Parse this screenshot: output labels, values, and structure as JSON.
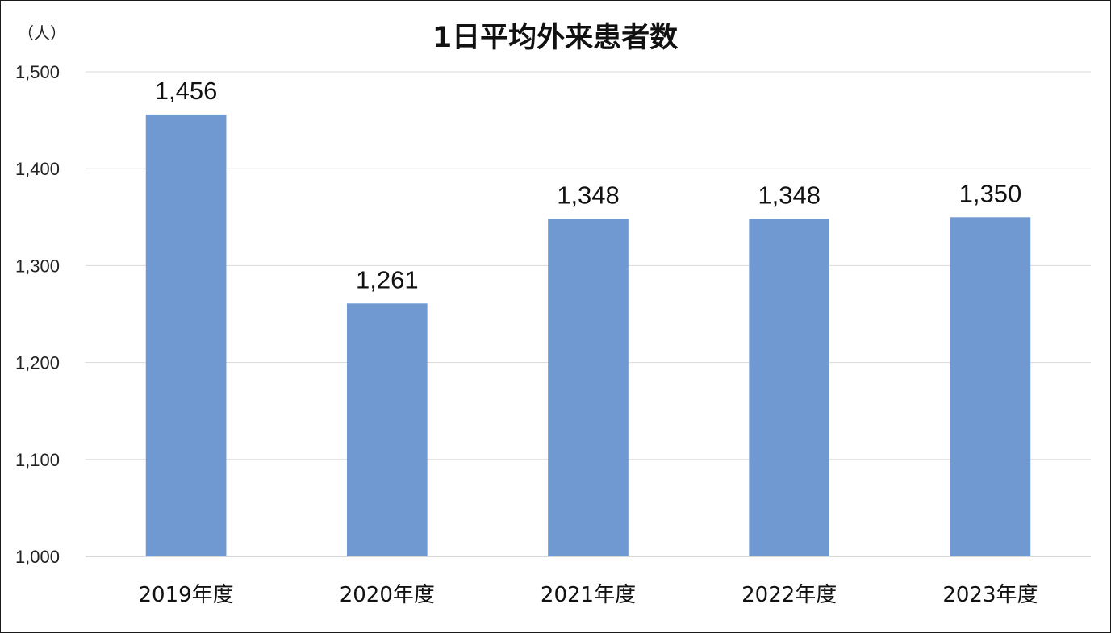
{
  "chart_data": {
    "type": "bar",
    "title": "1日平均外来患者数",
    "ylabel": "（人）",
    "xlabel": "",
    "categories": [
      "2019年度",
      "2020年度",
      "2021年度",
      "2022年度",
      "2023年度"
    ],
    "values": [
      1456,
      1261,
      1348,
      1348,
      1350
    ],
    "data_labels": [
      "1,456",
      "1,261",
      "1,348",
      "1,348",
      "1,350"
    ],
    "ylim": [
      1000,
      1500
    ],
    "yticks": [
      1000,
      1100,
      1200,
      1300,
      1400,
      1500
    ],
    "ytick_labels": [
      "1,000",
      "1,100",
      "1,200",
      "1,300",
      "1,400",
      "1,500"
    ],
    "grid": true,
    "legend": "none",
    "bar_color": "#7199d1"
  }
}
